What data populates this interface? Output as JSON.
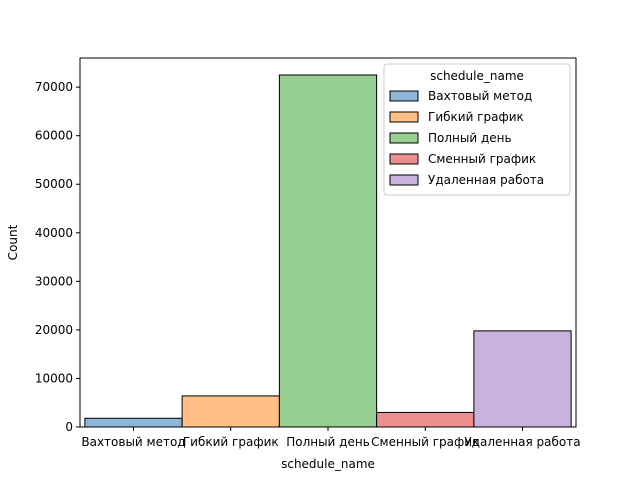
{
  "chart_data": {
    "type": "bar",
    "xlabel": "schedule_name",
    "ylabel": "Count",
    "categories": [
      "Вахтовый метод",
      "Гибкий график",
      "Полный день",
      "Сменный график",
      "Удаленная работа"
    ],
    "values": [
      1800,
      6400,
      72500,
      3000,
      19800
    ],
    "colors": [
      "#8fb6d9",
      "#ffbf86",
      "#96cf91",
      "#eb8f8f",
      "#c9b2dd"
    ],
    "ylim": [
      0,
      76000
    ],
    "yticks": [
      0,
      10000,
      20000,
      30000,
      40000,
      50000,
      60000,
      70000
    ],
    "grid": false,
    "legend": {
      "title": "schedule_name",
      "placement": "top-right",
      "entries": [
        "Вахтовый метод",
        "Гибкий график",
        "Полный день",
        "Сменный график",
        "Удаленная работа"
      ]
    }
  }
}
